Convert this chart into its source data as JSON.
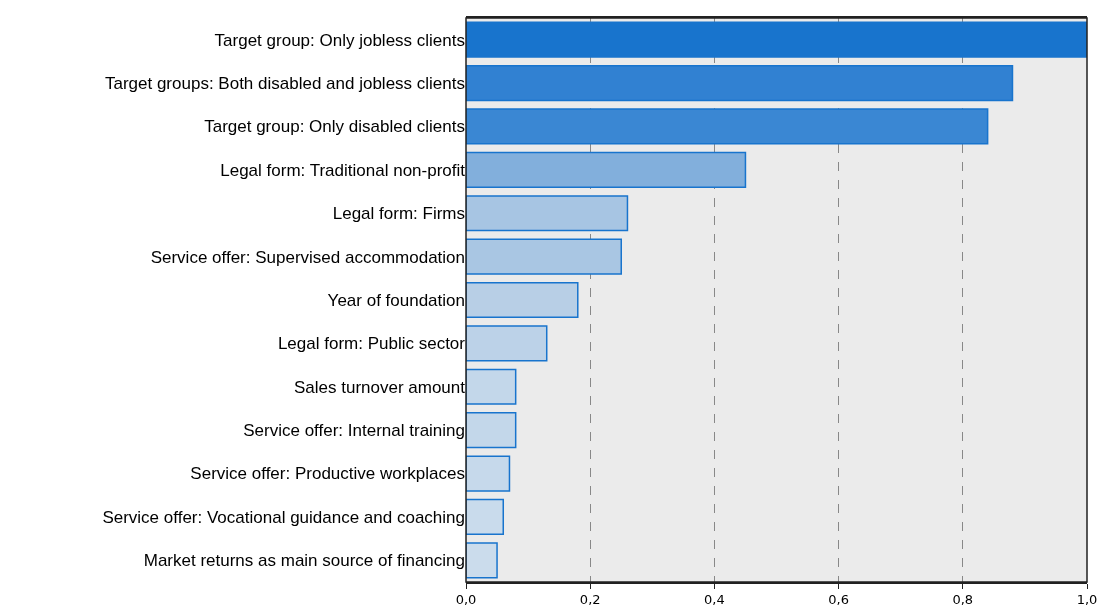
{
  "chart_data": {
    "type": "bar",
    "orientation": "horizontal",
    "categories": [
      "Target group: Only jobless clients",
      "Target groups: Both disabled and jobless clients",
      "Target group: Only disabled clients",
      "Legal form: Traditional non-profit",
      "Legal form: Firms",
      "Service offer: Supervised accommodation",
      "Year of foundation",
      "Legal form: Public sector",
      "Sales turnover amount",
      "Service offer: Internal training",
      "Service offer: Productive workplaces",
      "Service offer: Vocational guidance and coaching",
      "Market returns as main source of financing"
    ],
    "values": [
      1.0,
      0.88,
      0.84,
      0.45,
      0.26,
      0.25,
      0.18,
      0.13,
      0.08,
      0.08,
      0.07,
      0.06,
      0.05
    ],
    "colors": [
      "#1874cd",
      "#3181d2",
      "#3a87d3",
      "#82afdc",
      "#a7c5e3",
      "#a9c6e3",
      "#b8cfe6",
      "#bcd2e8",
      "#c3d7ea",
      "#c3d7ea",
      "#c6d9eb",
      "#c9dbec",
      "#cbdcec"
    ],
    "xlim": [
      0,
      1
    ],
    "xticks": [
      {
        "value": 0,
        "label": "0,0"
      },
      {
        "value": 0.2,
        "label": "0,2"
      },
      {
        "value": 0.4,
        "label": "0,4"
      },
      {
        "value": 0.6,
        "label": "0,6"
      },
      {
        "value": 0.8,
        "label": "0,8"
      },
      {
        "value": 1,
        "label": "1,0"
      }
    ],
    "grid": "x",
    "legend": false
  }
}
